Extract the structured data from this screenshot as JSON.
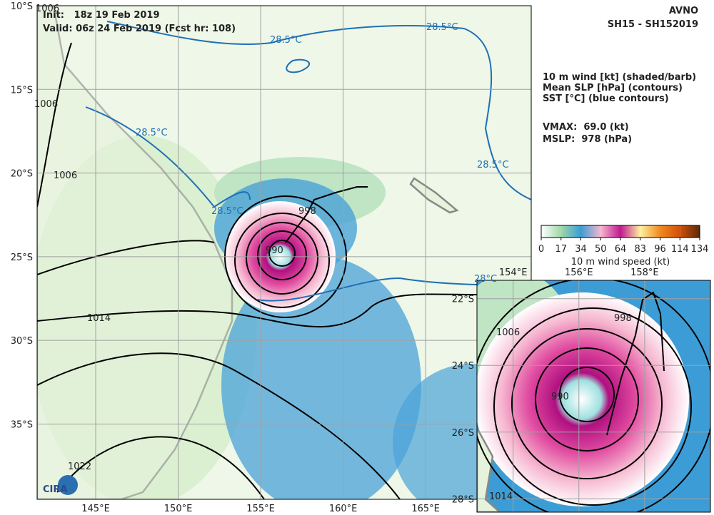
{
  "header": {
    "init": "Init:   18z 19 Feb 2019",
    "valid": "Valid: 06z 24 Feb 2019 (Fcst hr: 108)",
    "model": "AVNO",
    "storm": "SH15 - SH152019"
  },
  "legend": {
    "lines": [
      "10 m wind [kt] (shaded/barb)",
      "Mean SLP [hPa] (contours)",
      "SST [°C] (blue contours)"
    ],
    "vmax": "VMAX:  69.0 (kt)",
    "mslp": "MSLP:  978 (hPa)"
  },
  "colorbar": {
    "ticks": [
      0,
      17,
      34,
      50,
      64,
      83,
      96,
      114,
      134
    ],
    "colors": [
      "#ffffff",
      "#9fd8a8",
      "#3c9dd6",
      "#f6b6cf",
      "#c01a8e",
      "#fff0a0",
      "#f08a20",
      "#d0500a",
      "#5a2a08"
    ],
    "label": "10 m wind speed (kt)"
  },
  "map": {
    "lonlim": [
      141.45,
      171.4
    ],
    "latlim": [
      -10,
      -39.5
    ],
    "lat_ticks": [
      {
        "value": -10,
        "label": "10°S"
      },
      {
        "value": -15,
        "label": "15°S"
      },
      {
        "value": -20,
        "label": "20°S"
      },
      {
        "value": -25,
        "label": "25°S"
      },
      {
        "value": -30,
        "label": "30°S"
      },
      {
        "value": -35,
        "label": "35°S"
      }
    ],
    "lon_ticks": [
      {
        "value": 145,
        "label": "145°E"
      },
      {
        "value": 150,
        "label": "150°E"
      },
      {
        "value": 155,
        "label": "155°E"
      },
      {
        "value": 160,
        "label": "160°E"
      },
      {
        "value": 165,
        "label": "165°E"
      }
    ],
    "contour_labels": [
      "1006",
      "1006",
      "1006",
      "998",
      "990",
      "1014",
      "1022"
    ],
    "sst_labels": [
      "28.5°C",
      "28.5°C",
      "28.5°C",
      "28.5°C",
      "28.5°C",
      "28°C"
    ]
  },
  "inset": {
    "lonlim": [
      152.9,
      160.0
    ],
    "latlim": [
      -21.45,
      -28.4
    ],
    "lat_ticks": [
      {
        "value": -22,
        "label": "22°S"
      },
      {
        "value": -24,
        "label": "24°S"
      },
      {
        "value": -26,
        "label": "26°S"
      },
      {
        "value": -28,
        "label": "28°S"
      }
    ],
    "lon_ticks": [
      {
        "value": 154,
        "label": "154°E"
      },
      {
        "value": 156,
        "label": "156°E"
      },
      {
        "value": 158,
        "label": "158°E"
      }
    ],
    "contour_labels": [
      "1006",
      "998",
      "990",
      "1014"
    ]
  },
  "logo": "CIRA"
}
